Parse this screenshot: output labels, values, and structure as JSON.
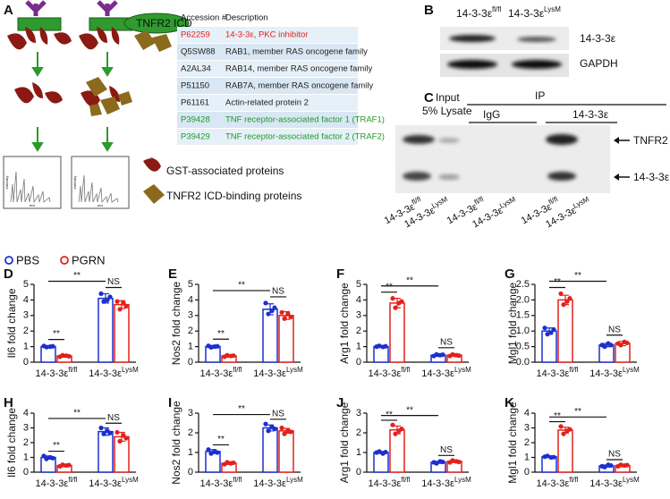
{
  "panel_a": {
    "label": "A",
    "fusion_label": "TNFR2 ICD",
    "ms_axis": {
      "y": "intensity",
      "x": "m/z"
    },
    "key": [
      "GST-associated proteins",
      "TNFR2 ICD-binding proteins"
    ],
    "table": {
      "header": [
        "Accession #",
        "Description"
      ],
      "rows": [
        [
          "P62259",
          "14-3-3ε, PKC inhibitor"
        ],
        [
          "Q5SW88",
          "RAB1, member RAS oncogene family"
        ],
        [
          "A2AL34",
          "RAB14, member RAS oncogene family"
        ],
        [
          "P51150",
          "RAB7A, member RAS oncogene family"
        ],
        [
          "P61161",
          "Actin-related protein 2"
        ],
        [
          "P39428",
          "TNF receptor-associated factor 1 (TRAF1)"
        ],
        [
          "P39429",
          "TNF receptor-associated factor 2 (TRAF2)"
        ]
      ],
      "row_colors": [
        "#e3211c",
        "#222222",
        "#222222",
        "#222222",
        "#222222",
        "#1e9a2c",
        "#1e9a2c"
      ]
    }
  },
  "panel_b": {
    "label": "B",
    "lanes": [
      {
        "base": "14-3-3ε",
        "sup": "fl/fl"
      },
      {
        "base": "14-3-3ε",
        "sup": "LysM"
      }
    ],
    "bands": [
      "14-3-3ε",
      "GAPDH"
    ]
  },
  "panel_c": {
    "label": "C",
    "input": [
      "Input",
      "5% Lysate"
    ],
    "ip": "IP",
    "ip_groups": [
      "IgG",
      "14-3-3ε"
    ],
    "bands": [
      "TNFR2",
      "14-3-3ε"
    ],
    "lanes": [
      {
        "base": "14-3-3ε",
        "sup": "fl/fl"
      },
      {
        "base": "14-3-3ε",
        "sup": "LysM"
      },
      {
        "base": "14-3-3ε",
        "sup": "fl/fl"
      },
      {
        "base": "14-3-3ε",
        "sup": "LysM"
      },
      {
        "base": "14-3-3ε",
        "sup": "fl/fl"
      },
      {
        "base": "14-3-3ε",
        "sup": "LysM"
      }
    ]
  },
  "legend": [
    {
      "name": "PBS",
      "color": "#1c2fd0"
    },
    {
      "name": "PGRN",
      "color": "#e3211c"
    }
  ],
  "chart_data": [
    {
      "type": "bar",
      "label": "D",
      "ylabel": "Il6 fold change",
      "categories": [
        {
          "base": "14-3-3ε",
          "sup": "fl/fl"
        },
        {
          "base": "14-3-3ε",
          "sup": "LysM"
        }
      ],
      "ylim": [
        0,
        5
      ],
      "yticks": [
        0,
        1,
        2,
        3,
        4,
        5
      ],
      "series": [
        {
          "values": [
            1.0,
            4.1
          ],
          "errors": [
            0.06,
            0.3
          ],
          "points": [
            [
              1.04,
              0.97,
              1.0,
              1.02
            ],
            [
              4.4,
              3.9,
              4.0,
              4.2
            ]
          ]
        },
        {
          "values": [
            0.4,
            3.7
          ],
          "errors": [
            0.08,
            0.25
          ],
          "points": [
            [
              0.35,
              0.45,
              0.42,
              0.38
            ],
            [
              3.9,
              3.4,
              3.8,
              3.6
            ]
          ]
        }
      ],
      "significance": {
        "within": [
          "**",
          "NS"
        ],
        "across": "**"
      }
    },
    {
      "type": "bar",
      "label": "E",
      "ylabel": "Nos2 fold change",
      "categories": [
        {
          "base": "14-3-3ε",
          "sup": "fl/fl"
        },
        {
          "base": "14-3-3ε",
          "sup": "LysM"
        }
      ],
      "ylim": [
        0,
        5
      ],
      "yticks": [
        0,
        1,
        2,
        3,
        4,
        5
      ],
      "series": [
        {
          "values": [
            1.0,
            3.4
          ],
          "errors": [
            0.08,
            0.35
          ],
          "points": [
            [
              1.05,
              0.95,
              1.0,
              1.02
            ],
            [
              3.8,
              3.1,
              3.3,
              3.5
            ]
          ]
        },
        {
          "values": [
            0.4,
            3.0
          ],
          "errors": [
            0.08,
            0.25
          ],
          "points": [
            [
              0.35,
              0.45,
              0.4,
              0.42
            ],
            [
              3.2,
              2.8,
              3.1,
              2.9
            ]
          ]
        }
      ],
      "significance": {
        "within": [
          "**",
          "NS"
        ],
        "across": "**"
      }
    },
    {
      "type": "bar",
      "label": "F",
      "ylabel": "Arg1 fold change",
      "categories": [
        {
          "base": "14-3-3ε",
          "sup": "fl/fl"
        },
        {
          "base": "14-3-3ε",
          "sup": "LysM"
        }
      ],
      "ylim": [
        0,
        5
      ],
      "yticks": [
        0,
        1,
        2,
        3,
        4,
        5
      ],
      "series": [
        {
          "values": [
            1.0,
            0.45
          ],
          "errors": [
            0.05,
            0.08
          ],
          "points": [
            [
              1.0,
              1.05,
              0.98,
              1.02
            ],
            [
              0.4,
              0.5,
              0.45,
              0.48
            ]
          ]
        },
        {
          "values": [
            3.8,
            0.45
          ],
          "errors": [
            0.3,
            0.08
          ],
          "points": [
            [
              4.1,
              3.5,
              3.8,
              3.9
            ],
            [
              0.4,
              0.5,
              0.45,
              0.42
            ]
          ]
        }
      ],
      "significance": {
        "within": [
          "**",
          "NS"
        ],
        "across": "**"
      }
    },
    {
      "type": "bar",
      "label": "G",
      "ylabel": "Mgl1 fold change",
      "categories": [
        {
          "base": "14-3-3ε",
          "sup": "fl/fl"
        },
        {
          "base": "14-3-3ε",
          "sup": "LysM"
        }
      ],
      "ylim": [
        0,
        2.5
      ],
      "yticks": [
        {
          "value": 0,
          "label": "0.0"
        },
        0.5,
        {
          "value": 1,
          "label": "1.0"
        },
        1.5,
        {
          "value": 2,
          "label": "2.0"
        },
        2.5
      ],
      "series": [
        {
          "values": [
            1.0,
            0.55
          ],
          "errors": [
            0.1,
            0.05
          ],
          "points": [
            [
              1.1,
              0.9,
              0.95,
              1.05
            ],
            [
              0.55,
              0.5,
              0.6,
              0.55
            ]
          ]
        },
        {
          "values": [
            2.0,
            0.6
          ],
          "errors": [
            0.15,
            0.07
          ],
          "points": [
            [
              2.2,
              1.85,
              1.95,
              2.05
            ],
            [
              0.6,
              0.55,
              0.65,
              0.62
            ]
          ]
        }
      ],
      "significance": {
        "within": [
          "**",
          "NS"
        ],
        "across": "**"
      }
    },
    {
      "type": "bar",
      "label": "H",
      "ylabel": "Il6 fold change",
      "categories": [
        {
          "base": "14-3-3ε",
          "sup": "fl/fl"
        },
        {
          "base": "14-3-3ε",
          "sup": "LysM"
        }
      ],
      "ylim": [
        0,
        4
      ],
      "yticks": [
        0,
        1,
        2,
        3,
        4
      ],
      "series": [
        {
          "values": [
            1.0,
            2.75
          ],
          "errors": [
            0.1,
            0.25
          ],
          "points": [
            [
              1.1,
              0.9,
              1.0,
              0.95
            ],
            [
              3.0,
              2.6,
              2.8,
              2.65
            ]
          ]
        },
        {
          "values": [
            0.45,
            2.4
          ],
          "errors": [
            0.07,
            0.3
          ],
          "points": [
            [
              0.4,
              0.5,
              0.45,
              0.48
            ],
            [
              2.7,
              2.1,
              2.5,
              2.3
            ]
          ]
        }
      ],
      "significance": {
        "within": [
          "**",
          "NS"
        ],
        "across": "**"
      }
    },
    {
      "type": "bar",
      "label": "I",
      "ylabel": "Nos2 fold change",
      "categories": [
        {
          "base": "14-3-3ε",
          "sup": "fl/fl"
        },
        {
          "base": "14-3-3ε",
          "sup": "LysM"
        }
      ],
      "ylim": [
        0,
        3
      ],
      "yticks": [
        0,
        1,
        2,
        3
      ],
      "series": [
        {
          "values": [
            1.05,
            2.25
          ],
          "errors": [
            0.1,
            0.15
          ],
          "points": [
            [
              1.15,
              0.95,
              1.05,
              1.0
            ],
            [
              2.45,
              2.1,
              2.3,
              2.2
            ]
          ]
        },
        {
          "values": [
            0.45,
            2.1
          ],
          "errors": [
            0.06,
            0.12
          ],
          "points": [
            [
              0.4,
              0.5,
              0.45,
              0.48
            ],
            [
              2.25,
              1.95,
              2.1,
              2.05
            ]
          ]
        }
      ],
      "significance": {
        "within": [
          "**",
          "NS"
        ],
        "across": "**"
      }
    },
    {
      "type": "bar",
      "label": "J",
      "ylabel": "Arg1 fold change",
      "categories": [
        {
          "base": "14-3-3ε",
          "sup": "fl/fl"
        },
        {
          "base": "14-3-3ε",
          "sup": "LysM"
        }
      ],
      "ylim": [
        0,
        3
      ],
      "yticks": [
        0,
        1,
        2,
        3
      ],
      "series": [
        {
          "values": [
            1.0,
            0.5
          ],
          "errors": [
            0.05,
            0.05
          ],
          "points": [
            [
              1.0,
              1.05,
              0.95,
              1.02
            ],
            [
              0.5,
              0.45,
              0.55,
              0.52
            ]
          ]
        },
        {
          "values": [
            2.15,
            0.55
          ],
          "errors": [
            0.2,
            0.06
          ],
          "points": [
            [
              2.4,
              1.95,
              2.1,
              2.2
            ],
            [
              0.5,
              0.6,
              0.55,
              0.52
            ]
          ]
        }
      ],
      "significance": {
        "within": [
          "**",
          "NS"
        ],
        "across": "**"
      }
    },
    {
      "type": "bar",
      "label": "K",
      "ylabel": "Mgl1 fold change",
      "categories": [
        {
          "base": "14-3-3ε",
          "sup": "fl/fl"
        },
        {
          "base": "14-3-3ε",
          "sup": "LysM"
        }
      ],
      "ylim": [
        0,
        4
      ],
      "yticks": [
        0,
        1,
        2,
        3,
        4
      ],
      "series": [
        {
          "values": [
            1.05,
            0.42
          ],
          "errors": [
            0.05,
            0.07
          ],
          "points": [
            [
              1.05,
              1.1,
              1.0,
              1.02
            ],
            [
              0.4,
              0.35,
              0.5,
              0.45
            ]
          ]
        },
        {
          "values": [
            2.85,
            0.45
          ],
          "errors": [
            0.2,
            0.08
          ],
          "points": [
            [
              3.1,
              2.6,
              2.8,
              2.9
            ],
            [
              0.4,
              0.5,
              0.45,
              0.48
            ]
          ]
        }
      ],
      "significance": {
        "within": [
          "**",
          "NS"
        ],
        "across": "**"
      }
    }
  ]
}
